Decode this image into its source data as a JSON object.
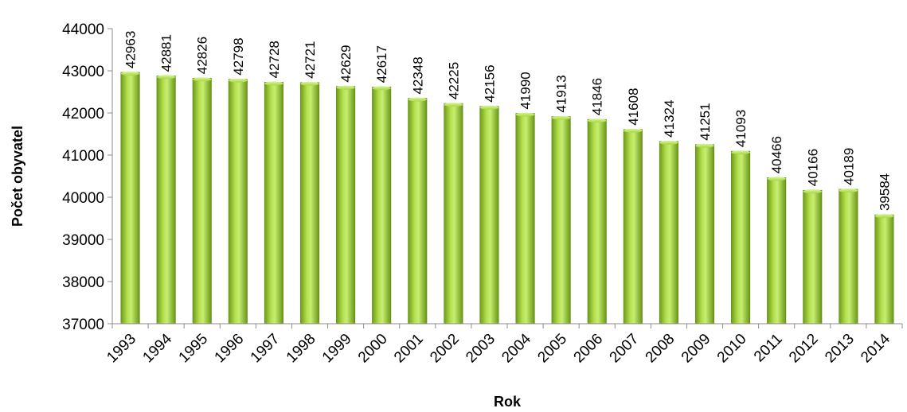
{
  "chart_data": {
    "type": "bar",
    "title": "",
    "xlabel": "Rok",
    "ylabel": "Počet obyvatel",
    "ylim": [
      37000,
      44000
    ],
    "yticks": [
      37000,
      38000,
      39000,
      40000,
      41000,
      42000,
      43000,
      44000
    ],
    "grid": false,
    "legend": "none",
    "colors": {
      "bar_light": "#c4ec6a",
      "bar_mid": "#9acd32",
      "bar_dark": "#5e8a12",
      "axis": "#8c8c8c"
    },
    "categories": [
      "1993",
      "1994",
      "1995",
      "1996",
      "1997",
      "1998",
      "1999",
      "2000",
      "2001",
      "2002",
      "2003",
      "2004",
      "2005",
      "2006",
      "2007",
      "2008",
      "2009",
      "2010",
      "2011",
      "2012",
      "2013",
      "2014"
    ],
    "values": [
      42963,
      42881,
      42826,
      42798,
      42728,
      42721,
      42629,
      42617,
      42348,
      42225,
      42156,
      41990,
      41913,
      41846,
      41608,
      41324,
      41251,
      41093,
      40466,
      40166,
      40189,
      39584
    ]
  }
}
